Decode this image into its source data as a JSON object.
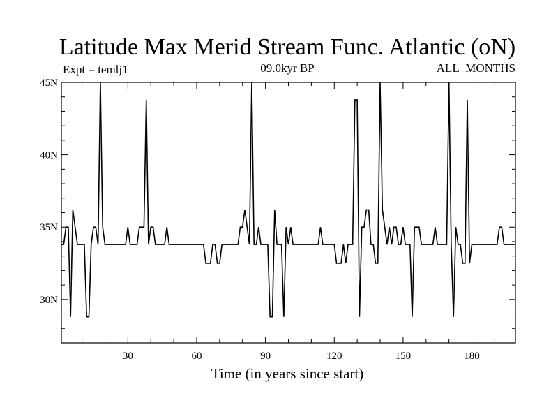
{
  "chart_data": {
    "type": "line",
    "title": "Latitude Max Merid Stream Func. Atlantic (oN)",
    "subtitle_left": "Expt = temlj1",
    "subtitle_center": "09.0kyr BP",
    "subtitle_right": "ALL_MONTHS",
    "xlabel": "Time (in years since start)",
    "ylabel": "",
    "xlim": [
      1,
      199
    ],
    "ylim": [
      27,
      45
    ],
    "x_ticks": [
      30,
      60,
      90,
      120,
      150,
      180
    ],
    "x_tick_labels": [
      "30",
      "60",
      "90",
      "120",
      "150",
      "180"
    ],
    "y_ticks": [
      30,
      35,
      40,
      45
    ],
    "y_tick_labels": [
      "30N",
      "35N",
      "40N",
      "45N"
    ],
    "grid": false,
    "legend": "none",
    "series": [
      {
        "color": "#000000",
        "x": [
          1,
          2,
          3,
          4,
          5,
          6,
          7,
          8,
          9,
          10,
          11,
          12,
          13,
          14,
          15,
          16,
          17,
          18,
          19,
          20,
          21,
          22,
          23,
          24,
          25,
          26,
          27,
          28,
          29,
          30,
          31,
          32,
          33,
          34,
          35,
          36,
          37,
          38,
          39,
          40,
          41,
          42,
          43,
          44,
          45,
          46,
          47,
          48,
          49,
          50,
          51,
          52,
          53,
          54,
          55,
          56,
          57,
          58,
          59,
          60,
          61,
          62,
          63,
          64,
          65,
          66,
          67,
          68,
          69,
          70,
          71,
          72,
          73,
          74,
          75,
          76,
          77,
          78,
          79,
          80,
          81,
          82,
          83,
          84,
          85,
          86,
          87,
          88,
          89,
          90,
          91,
          92,
          93,
          94,
          95,
          96,
          97,
          98,
          99,
          100,
          101,
          102,
          103,
          104,
          105,
          106,
          107,
          108,
          109,
          110,
          111,
          112,
          113,
          114,
          115,
          116,
          117,
          118,
          119,
          120,
          121,
          122,
          123,
          124,
          125,
          126,
          127,
          128,
          129,
          130,
          131,
          132,
          133,
          134,
          135,
          136,
          137,
          138,
          139,
          140,
          141,
          142,
          143,
          144,
          145,
          146,
          147,
          148,
          149,
          150,
          151,
          152,
          153,
          154,
          155,
          156,
          157,
          158,
          159,
          160,
          161,
          162,
          163,
          164,
          165,
          166,
          167,
          168,
          169,
          170,
          171,
          172,
          173,
          174,
          175,
          176,
          177,
          178,
          179,
          180,
          181,
          182,
          183,
          184,
          185,
          186,
          187,
          188,
          189,
          190,
          191,
          192,
          193,
          194,
          195,
          196,
          197,
          198,
          199
        ],
        "y": [
          33.8,
          33.8,
          35.0,
          35.0,
          28.8,
          36.2,
          35.0,
          33.8,
          33.8,
          33.8,
          33.8,
          28.8,
          28.8,
          33.8,
          35.0,
          35.0,
          33.8,
          45.0,
          35.0,
          33.8,
          33.8,
          33.8,
          33.8,
          33.8,
          33.8,
          33.8,
          33.8,
          33.8,
          33.8,
          35.0,
          33.8,
          33.8,
          33.8,
          33.8,
          35.0,
          35.0,
          35.0,
          43.8,
          33.8,
          35.0,
          35.0,
          33.8,
          33.8,
          33.8,
          33.8,
          33.8,
          35.0,
          33.8,
          33.8,
          33.8,
          33.8,
          33.8,
          33.8,
          33.8,
          33.8,
          33.8,
          33.8,
          33.8,
          33.8,
          33.8,
          33.8,
          33.8,
          33.8,
          32.5,
          32.5,
          32.5,
          33.8,
          33.8,
          32.5,
          32.5,
          33.8,
          33.8,
          33.8,
          33.8,
          33.8,
          33.8,
          33.8,
          33.8,
          35.0,
          35.0,
          36.2,
          35.0,
          33.8,
          45.0,
          33.8,
          33.8,
          35.0,
          33.8,
          33.8,
          33.8,
          33.8,
          28.8,
          28.8,
          36.2,
          33.8,
          33.8,
          33.8,
          28.8,
          35.0,
          33.8,
          35.0,
          33.8,
          33.8,
          33.8,
          33.8,
          33.8,
          33.8,
          33.8,
          33.8,
          33.8,
          33.8,
          33.8,
          33.8,
          35.0,
          33.8,
          33.8,
          33.8,
          33.8,
          33.8,
          33.8,
          32.5,
          32.5,
          32.5,
          33.8,
          32.5,
          33.8,
          33.8,
          33.8,
          43.8,
          43.8,
          28.8,
          35.0,
          35.0,
          36.2,
          36.2,
          33.8,
          33.8,
          32.5,
          32.5,
          45.0,
          36.2,
          35.0,
          33.8,
          35.0,
          33.8,
          35.0,
          35.0,
          33.8,
          33.8,
          35.0,
          33.8,
          33.8,
          33.8,
          28.8,
          35.0,
          35.0,
          35.0,
          33.8,
          33.8,
          33.8,
          33.8,
          33.8,
          33.8,
          35.0,
          33.8,
          33.8,
          33.8,
          33.8,
          33.8,
          45.0,
          33.8,
          28.8,
          35.0,
          33.8,
          33.8,
          32.5,
          32.5,
          43.8,
          32.5,
          33.8,
          33.8,
          33.8,
          33.8,
          33.8,
          33.8,
          33.8,
          33.8,
          33.8,
          33.8,
          33.8,
          33.8,
          35.0,
          35.0,
          33.8,
          33.8,
          33.8,
          33.8,
          33.8,
          33.8
        ]
      }
    ]
  }
}
